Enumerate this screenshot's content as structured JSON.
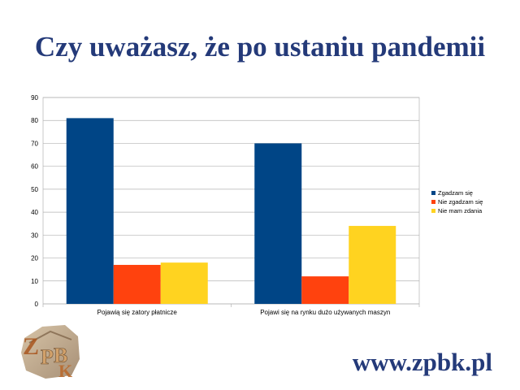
{
  "slide": {
    "title": "Czy uważasz, że po ustaniu pandemii",
    "website": "www.zpbk.pl",
    "logo_text": "ZPBK"
  },
  "colors": {
    "title": "#243a79",
    "series": [
      "#004586",
      "#ff420e",
      "#ffd320"
    ],
    "grid": "#b3b3b3"
  },
  "chart_data": {
    "type": "bar",
    "categories": [
      "Pojawią się zatory płatnicze",
      "Pojawi się na rynku dużo używanych maszyn"
    ],
    "series": [
      {
        "name": "Zgadzam się",
        "values": [
          81,
          70
        ]
      },
      {
        "name": "Nie zgadzam się",
        "values": [
          17,
          12
        ]
      },
      {
        "name": "Nie mam zdania",
        "values": [
          18,
          34
        ]
      }
    ],
    "ylim": [
      0,
      90
    ],
    "yticks": [
      0,
      10,
      20,
      30,
      40,
      50,
      60,
      70,
      80,
      90
    ],
    "grid": true,
    "legend": "right"
  }
}
